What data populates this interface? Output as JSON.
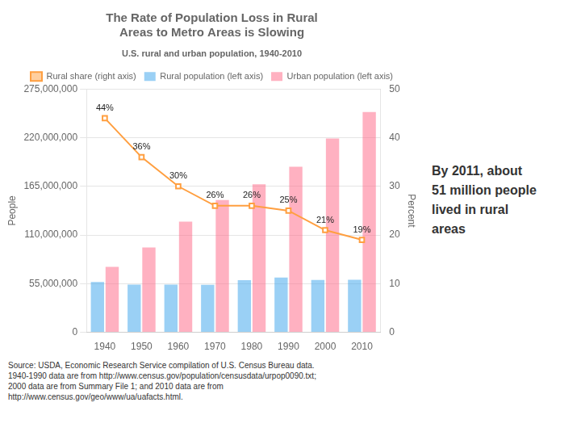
{
  "chart_data": {
    "type": "bar",
    "title": "The Rate of Population Loss in Rural\nAreas to Metro Areas is Slowing",
    "subtitle": "U.S. rural and urban population, 1940-2010",
    "ylabel": "People",
    "y2label": "Percent",
    "categories": [
      "1940",
      "1950",
      "1960",
      "1970",
      "1980",
      "1990",
      "2000",
      "2010"
    ],
    "series": [
      {
        "name": "Rural population (left axis)",
        "values": [
          57000000,
          54000000,
          54000000,
          53700000,
          59000000,
          61800000,
          59100000,
          59500000
        ]
      },
      {
        "name": "Urban population (left axis)",
        "values": [
          74000000,
          96000000,
          125000000,
          149500000,
          167400000,
          187100000,
          219000000,
          249000000
        ]
      },
      {
        "name": "Rural share (right axis)",
        "type": "line",
        "axis": "y2",
        "marker": "square",
        "data_labels": true,
        "values": [
          44,
          36,
          30,
          26,
          26,
          25,
          21,
          19
        ],
        "value_labels": [
          "44%",
          "36%",
          "30%",
          "26%",
          "26%",
          "25%",
          "21%",
          "19%"
        ]
      }
    ],
    "ylim": [
      0,
      275000000
    ],
    "yticks": [
      0,
      {
        "value": 55000000,
        "label": "55,000,000"
      },
      {
        "value": 110000000,
        "label": "110,000,000"
      },
      {
        "value": 165000000,
        "label": "165,000,000"
      },
      {
        "value": 220000000,
        "label": "220,000,000"
      },
      {
        "value": 275000000,
        "label": "275,000,000"
      }
    ],
    "y2lim": [
      0,
      50
    ],
    "y2ticks": [
      0,
      10,
      20,
      30,
      40,
      50
    ],
    "grid": true,
    "legend": "top",
    "annotations": [
      "By 2011, about\n51 million people\nlived in rural\nareas",
      "Source: USDA, Economic Research Service compilation of U.S. Census Bureau data.\n1940-1990 data are from http://www.census.gov/population/censusdata/urpop0090.txt;\n2000 data are from Summary File 1; and 2010 data are from\nhttp://www.census.gov/geo/www/ua/uafacts.html."
    ]
  }
}
